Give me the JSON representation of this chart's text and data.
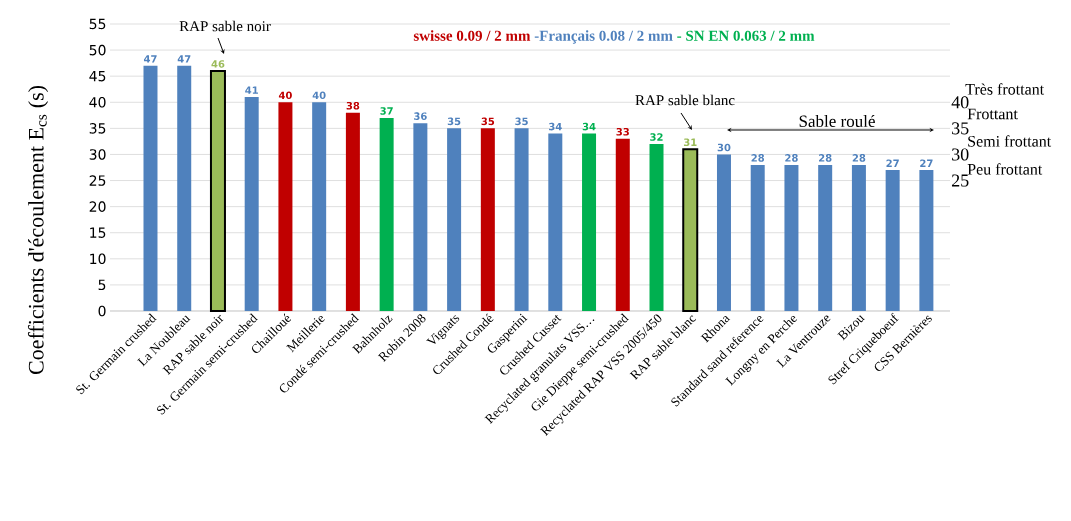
{
  "chart_data": {
    "type": "bar",
    "ylabel": "Coefficients d'écoulement E$_{cs}$ (s)",
    "categories": [
      "St. Germain crushed",
      "La Noubleau",
      "RAP sable noir",
      "St. Germain semi-crushed",
      "Chailloué",
      "Meillerie",
      "Condé semi-crushed",
      "Bahnholz",
      "Robin 2008",
      "Vignats",
      "Crushed  Condé",
      "Gasperini",
      "Crushed Cusset",
      "Recyclated granulats VSS…",
      "Gie Dieppe semi-crushed",
      "Recyclated RAP VSS 2005/450",
      "RAP sable blanc",
      "Rhona",
      "Standard sand reference",
      "Longny en Perche",
      "La Ventrouze",
      "Bizou",
      "Stref Criqueboeuf",
      "CSS Bernières"
    ],
    "series": [
      {
        "name": "swisse 0.09 / 2 mm",
        "color": "#c00000",
        "values": [
          null,
          null,
          null,
          null,
          40,
          null,
          38,
          null,
          null,
          null,
          35,
          null,
          null,
          null,
          33,
          null,
          null,
          null,
          null,
          null,
          null,
          null,
          null,
          null
        ]
      },
      {
        "name": "-Français 0.08 / 2 mm",
        "color": "#4f81bd",
        "values": [
          47,
          47,
          null,
          41,
          null,
          40,
          null,
          null,
          36,
          35,
          null,
          35,
          34,
          null,
          null,
          null,
          null,
          30,
          28,
          28,
          28,
          28,
          27,
          27
        ]
      },
      {
        "name": "- SN EN 0.063 / 2 mm",
        "color": "#00b050",
        "values": [
          null,
          null,
          null,
          null,
          null,
          null,
          null,
          37,
          null,
          null,
          null,
          null,
          null,
          34,
          null,
          32,
          null,
          null,
          null,
          null,
          null,
          null,
          null,
          null
        ]
      },
      {
        "color": "#9bbb59",
        "values": [
          null,
          null,
          46,
          null,
          null,
          null,
          null,
          null,
          null,
          null,
          null,
          null,
          null,
          null,
          null,
          null,
          31,
          null,
          null,
          null,
          null,
          null,
          null,
          null
        ]
      }
    ],
    "ylim": [
      0,
      55
    ],
    "yticks": [
      0,
      5,
      10,
      15,
      20,
      25,
      30,
      35,
      40,
      45,
      50,
      55
    ],
    "y2lim": [
      0,
      55
    ],
    "y2ticks": [
      25,
      30,
      35,
      40
    ],
    "grid": "y",
    "legend": "top",
    "data_labels": true,
    "annotations": [
      "RAP sable noir",
      "RAP sable blanc",
      "Sable roulé",
      "Très frottant",
      "Frottant",
      "Semi frottant",
      "Peu frottant"
    ]
  }
}
